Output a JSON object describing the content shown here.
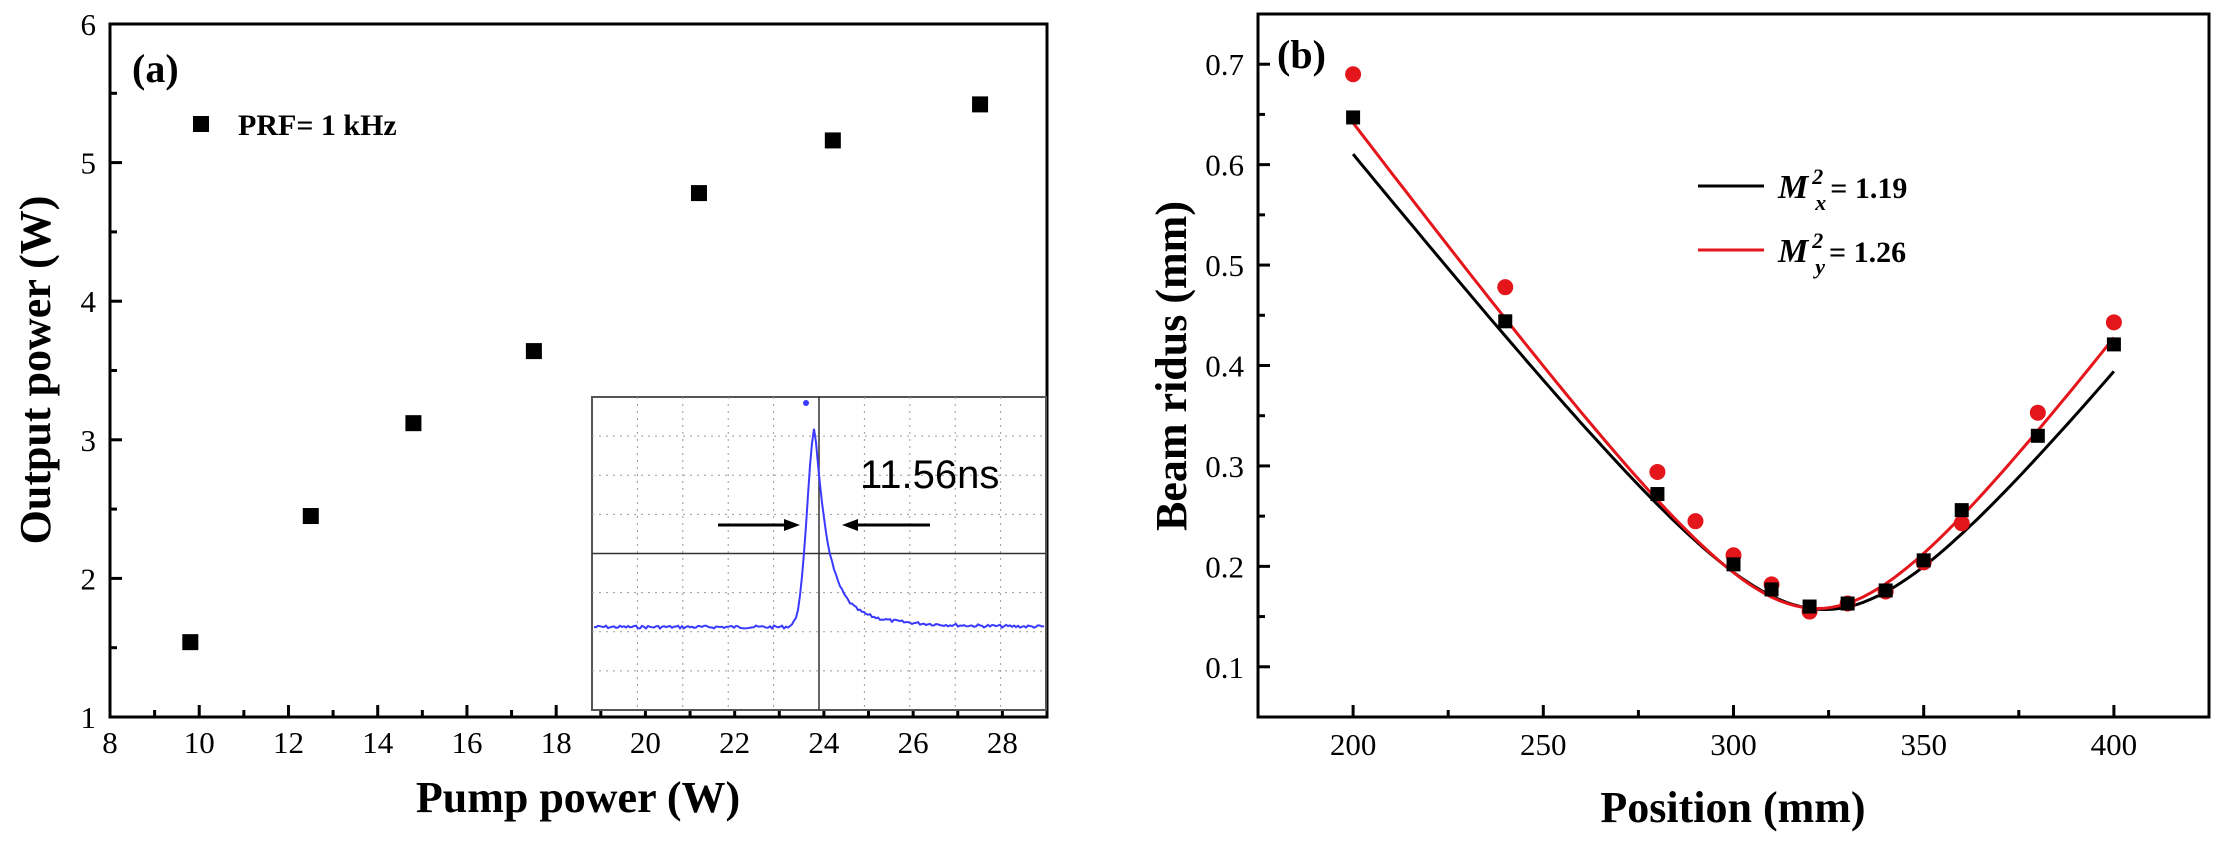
{
  "colors": {
    "series_black": "#000000",
    "series_red": "#e4151b",
    "pulse_blue": "#3a3aff",
    "inset_grid": "#9a9a9a"
  },
  "chart_data": [
    {
      "panel": "(a)",
      "type": "scatter",
      "xlabel": "Pump power (W)",
      "ylabel": "Output power (W)",
      "xlim": [
        8,
        29
      ],
      "ylim": [
        1,
        6
      ],
      "x_ticks": [
        "8",
        "10",
        "12",
        "14",
        "16",
        "18",
        "20",
        "22",
        "24",
        "26",
        "28"
      ],
      "y_ticks": [
        "1",
        "2",
        "3",
        "4",
        "5",
        "6"
      ],
      "legend": "PRF= 1 kHz",
      "series": [
        {
          "name": "PRF= 1 kHz",
          "x": [
            9.8,
            12.5,
            14.8,
            17.5,
            21.2,
            24.2,
            27.5
          ],
          "y": [
            1.54,
            2.45,
            3.12,
            3.64,
            4.78,
            5.16,
            5.42
          ]
        }
      ],
      "inset": {
        "description_label": "11.56ns",
        "type": "oscilloscope-trace",
        "annotation": "pulse width arrows"
      }
    },
    {
      "panel": "(b)",
      "type": "scatter+line",
      "xlabel": "Position (mm)",
      "ylabel": "Beam ridus (mm)",
      "xlim": [
        175,
        425
      ],
      "ylim": [
        0.05,
        0.75
      ],
      "x_ticks": [
        "200",
        "250",
        "300",
        "350",
        "400"
      ],
      "y_ticks": [
        "0.1",
        "0.2",
        "0.3",
        "0.4",
        "0.5",
        "0.6",
        "0.7"
      ],
      "legend": [
        {
          "label_main": "M",
          "label_sup": "2",
          "label_sub": "x",
          "label_value": " = 1.19",
          "color": "#000000"
        },
        {
          "label_main": "M",
          "label_sup": "2",
          "label_sub": "y",
          "label_value": " = 1.26",
          "color": "#e4151b"
        }
      ],
      "series": [
        {
          "name": "Mx",
          "marker": "square",
          "color": "#000000",
          "x": [
            200,
            240,
            280,
            300,
            310,
            320,
            330,
            340,
            350,
            360,
            380,
            400
          ],
          "y": [
            0.647,
            0.444,
            0.272,
            0.202,
            0.177,
            0.16,
            0.163,
            0.176,
            0.206,
            0.256,
            0.33,
            0.421
          ],
          "fit": {
            "w0": 0.157,
            "z0": 324,
            "zR": 33
          }
        },
        {
          "name": "My",
          "marker": "circle",
          "color": "#e4151b",
          "x": [
            200,
            240,
            280,
            290,
            300,
            310,
            320,
            330,
            340,
            350,
            360,
            380,
            400
          ],
          "y": [
            0.69,
            0.478,
            0.294,
            0.245,
            0.211,
            0.182,
            0.155,
            0.163,
            0.175,
            0.204,
            0.243,
            0.353,
            0.443
          ],
          "fit": {
            "w0": 0.158,
            "z0": 322,
            "zR": 31
          }
        }
      ]
    }
  ]
}
